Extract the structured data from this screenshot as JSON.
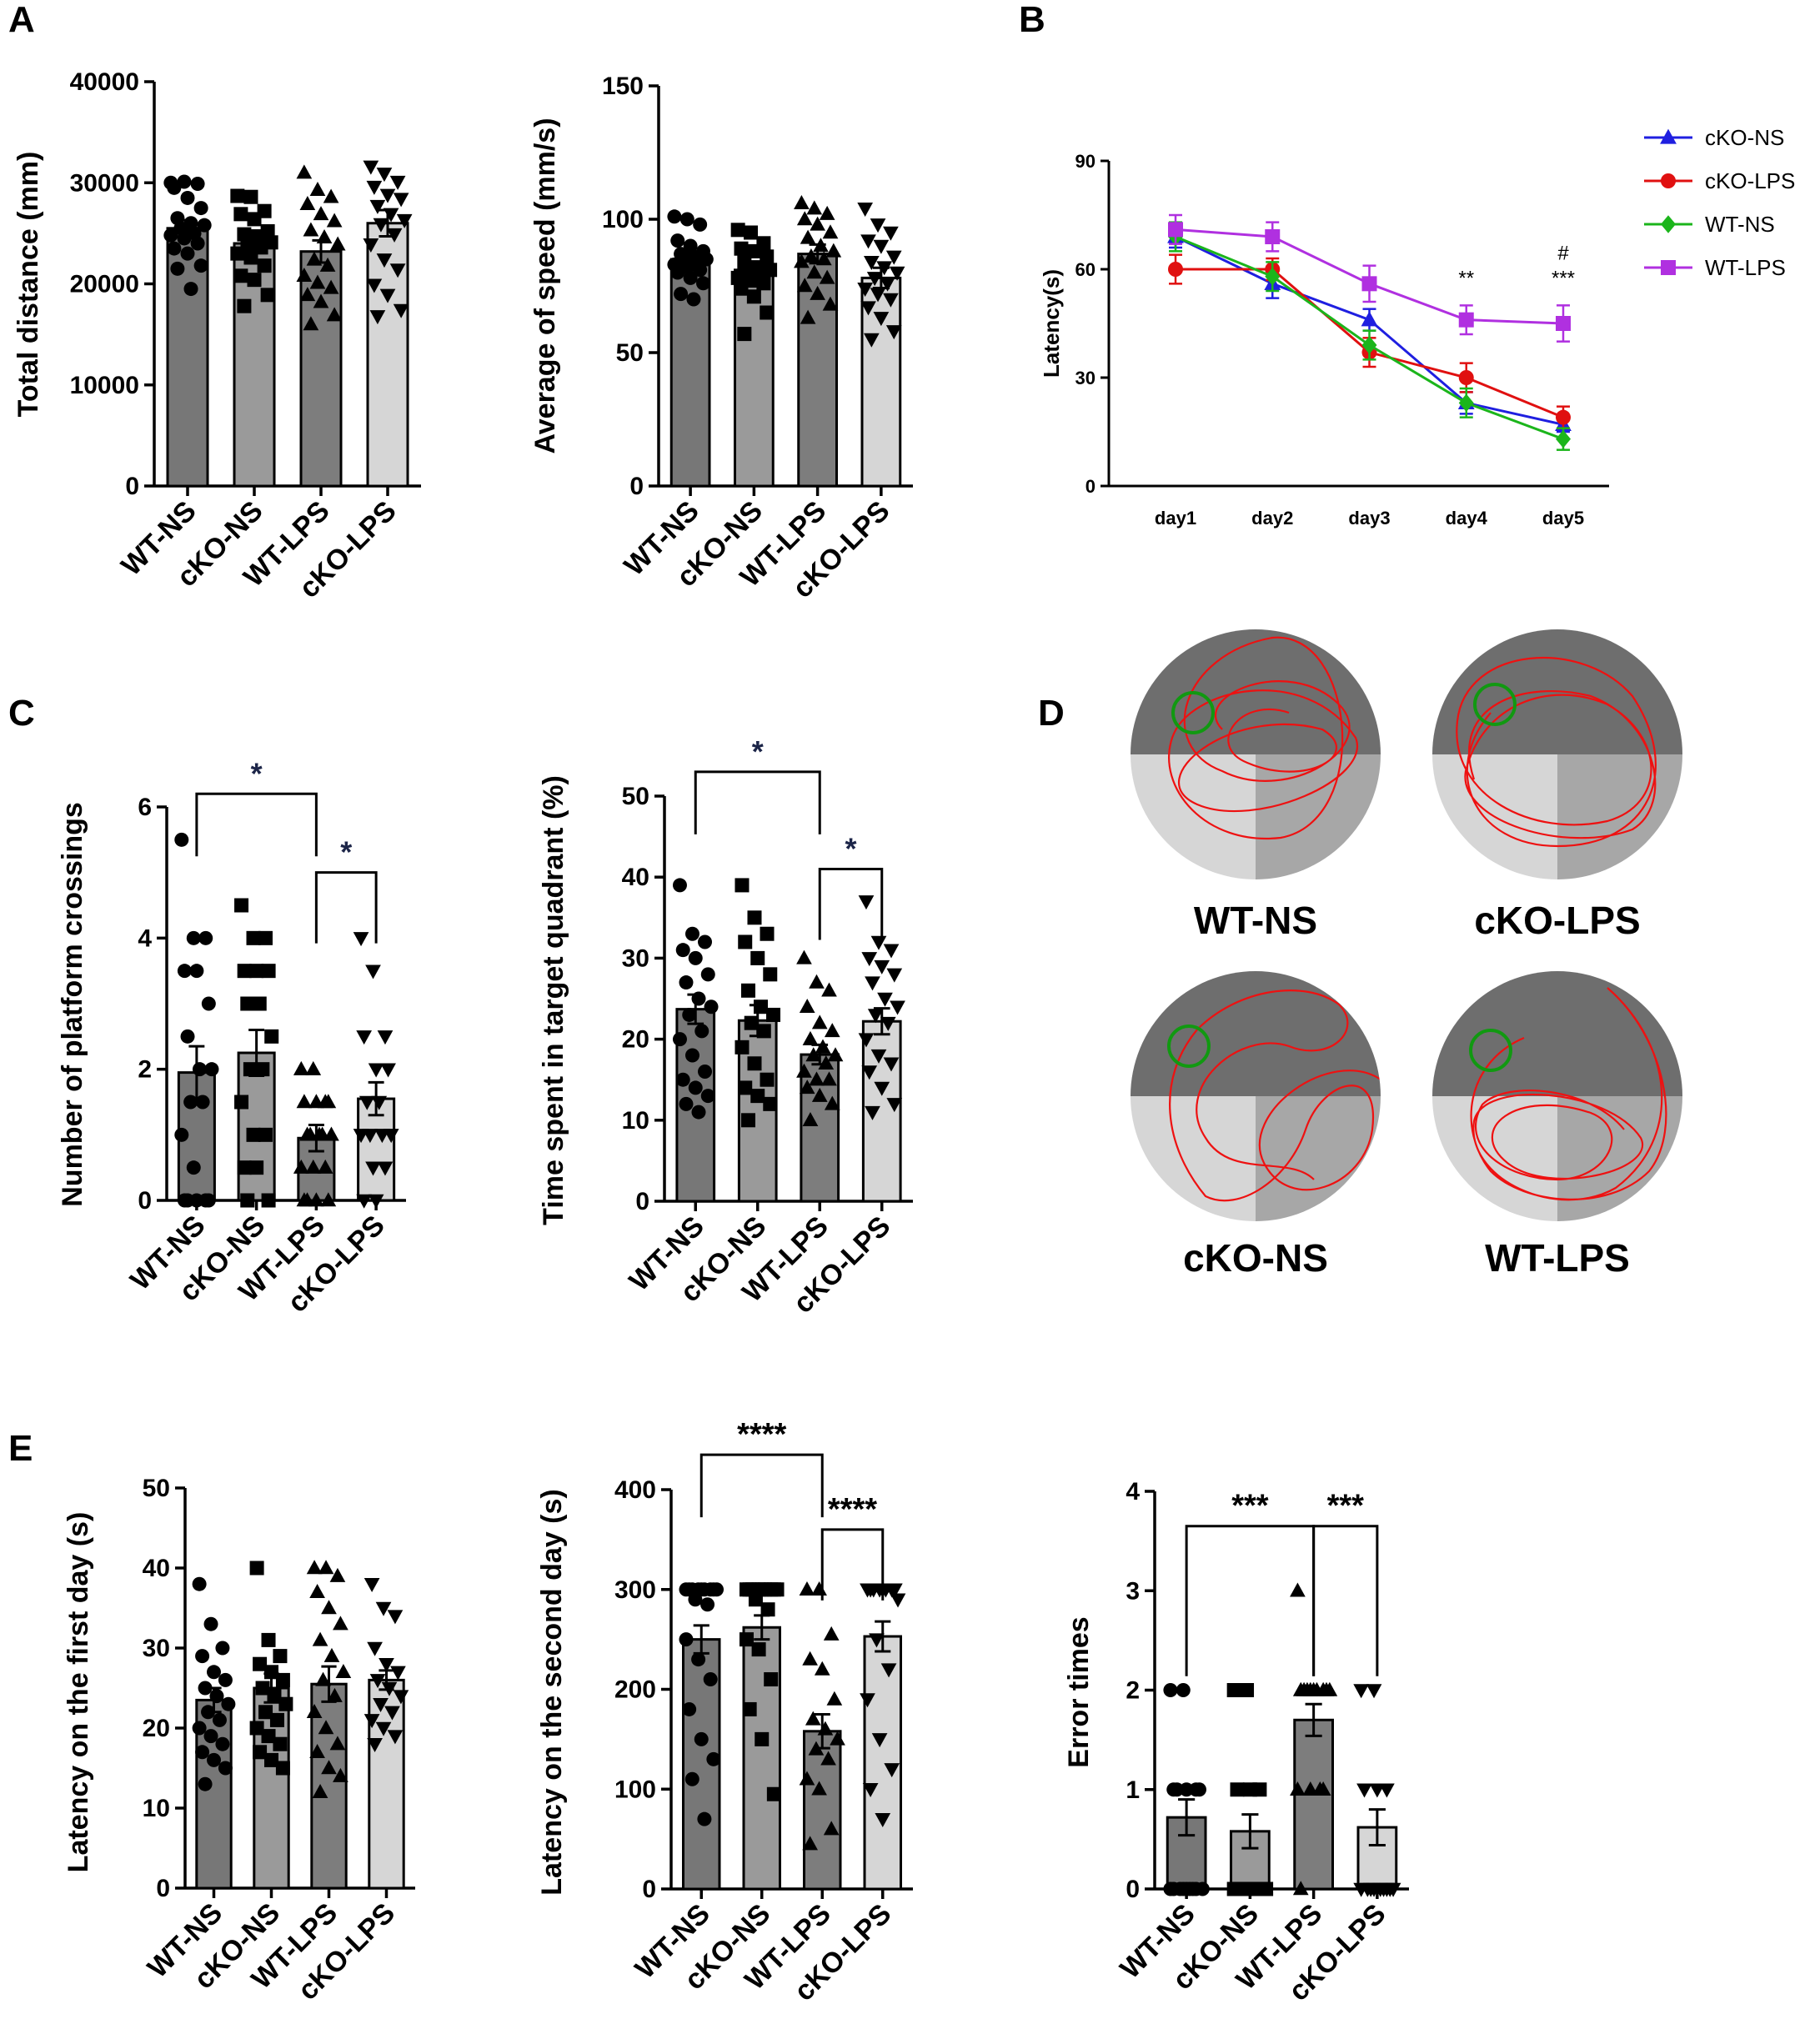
{
  "panels": {
    "A": "A",
    "B": "B",
    "C": "C",
    "D": "D",
    "E": "E"
  },
  "colors": {
    "bars": [
      "#777777",
      "#9a9a9a",
      "#7d7d7d",
      "#d6d6d6"
    ],
    "cKO-NS": "#1f1fe0",
    "cKO-LPS": "#e01010",
    "WT-NS": "#1bb51b",
    "WT-LPS": "#b030e0",
    "sig_dark": "#1c2548",
    "maze_dark": "#6e6e6e",
    "maze_mid": "#a7a7a7",
    "maze_light": "#d6d6d6",
    "path": "#ee1111",
    "platform": "#119911"
  },
  "chart_data": [
    {
      "id": "A1",
      "type": "bar",
      "ylabel": "Total distance (mm)",
      "ylim": [
        0,
        40000
      ],
      "yticks": [
        "0",
        "10000",
        "20000",
        "30000",
        "40000"
      ],
      "categories": [
        "WT-NS",
        "cKO-NS",
        "WT-LPS",
        "cKO-LPS"
      ],
      "values": [
        25500,
        24000,
        23200,
        26000
      ],
      "errors": [
        800,
        900,
        1100,
        1300
      ],
      "markers": [
        "circle",
        "square",
        "triangle",
        "tri-down"
      ],
      "points": [
        [
          30000,
          30100,
          29900,
          29500,
          28500,
          27500,
          26500,
          26000,
          25800,
          25500,
          25000,
          24800,
          24500,
          24000,
          23500,
          23000,
          21800,
          21500,
          19500
        ],
        [
          28700,
          28600,
          27200,
          26900,
          26400,
          25200,
          24900,
          24700,
          24100,
          23900,
          23600,
          23000,
          22600,
          21800,
          20800,
          20400,
          18900,
          17800
        ],
        [
          31000,
          29300,
          28600,
          27900,
          26900,
          26200,
          25300,
          24600,
          23900,
          22400,
          21800,
          20800,
          20100,
          19600,
          18900,
          18200,
          16900,
          16000
        ],
        [
          31600,
          30900,
          30100,
          29600,
          28800,
          28400,
          27700,
          26900,
          26300,
          25900,
          24900,
          23900,
          22400,
          21400,
          19900,
          18900,
          17400,
          16800
        ]
      ],
      "sig": []
    },
    {
      "id": "A2",
      "type": "bar",
      "ylabel": "Average of speed (mm/s)",
      "ylim": [
        0,
        150
      ],
      "yticks": [
        "0",
        "50",
        "100",
        "150"
      ],
      "categories": [
        "WT-NS",
        "cKO-NS",
        "WT-LPS",
        "cKO-LPS"
      ],
      "values": [
        85,
        81,
        87,
        78
      ],
      "errors": [
        2.5,
        3,
        3.5,
        3.8
      ],
      "markers": [
        "circle",
        "square",
        "triangle",
        "tri-down"
      ],
      "points": [
        [
          101,
          100,
          98,
          92,
          90,
          88,
          87,
          86,
          85,
          84,
          84,
          83,
          82,
          81,
          80,
          78,
          76,
          72,
          70
        ],
        [
          96,
          95,
          91,
          89,
          88,
          86,
          84,
          82,
          81,
          80,
          79,
          78,
          77,
          76,
          74,
          71,
          65,
          57
        ],
        [
          106,
          104,
          102,
          100,
          98,
          95,
          93,
          90,
          88,
          86,
          85,
          84,
          80,
          78,
          75,
          72,
          68,
          63
        ],
        [
          104,
          98,
          95,
          92,
          90,
          86,
          84,
          82,
          80,
          78,
          76,
          74,
          72,
          70,
          67,
          63,
          58,
          55
        ]
      ],
      "sig": []
    },
    {
      "id": "B",
      "type": "line",
      "xlabel": "",
      "ylabel": "Latency(s)",
      "ylim": [
        0,
        90
      ],
      "x": [
        "day1",
        "day2",
        "day3",
        "day4",
        "day5"
      ],
      "yticks": [
        "0",
        "30",
        "60",
        "90"
      ],
      "series": [
        {
          "name": "cKO-NS",
          "marker": "triangle",
          "values": [
            69,
            56,
            46,
            23,
            17
          ],
          "errors": [
            3,
            4,
            3,
            3,
            2
          ]
        },
        {
          "name": "cKO-LPS",
          "marker": "circle",
          "values": [
            60,
            60,
            37,
            30,
            19
          ],
          "errors": [
            4,
            3,
            4,
            4,
            3
          ]
        },
        {
          "name": "WT-NS",
          "marker": "diamond",
          "values": [
            69,
            58,
            39,
            23,
            13
          ],
          "errors": [
            4,
            4,
            4,
            4,
            3
          ]
        },
        {
          "name": "WT-LPS",
          "marker": "square",
          "values": [
            71,
            69,
            56,
            46,
            45
          ],
          "errors": [
            4,
            4,
            5,
            4,
            5
          ]
        }
      ],
      "annotations": [
        {
          "x": "day4",
          "text": "**"
        },
        {
          "x": "day5",
          "text": "***"
        },
        {
          "x": "day5",
          "text": "#"
        }
      ]
    },
    {
      "id": "C1",
      "type": "bar",
      "ylabel": "Number of platform crossings",
      "ylim": [
        0,
        6
      ],
      "yticks": [
        "0",
        "2",
        "4",
        "6"
      ],
      "categories": [
        "WT-NS",
        "cKO-NS",
        "WT-LPS",
        "cKO-LPS"
      ],
      "values": [
        1.95,
        2.25,
        0.95,
        1.55
      ],
      "errors": [
        0.4,
        0.35,
        0.2,
        0.25
      ],
      "markers": [
        "circle",
        "square",
        "triangle",
        "tri-down"
      ],
      "points": [
        [
          5.5,
          4,
          4,
          3.5,
          3.5,
          3,
          2.5,
          2,
          2,
          1.5,
          1.5,
          1,
          0.5,
          0,
          0,
          0,
          0,
          0
        ],
        [
          4.5,
          4,
          4,
          3.5,
          3.5,
          3.5,
          3,
          3,
          2.5,
          2,
          2,
          1.5,
          1,
          1,
          0.5,
          0.5,
          0,
          0
        ],
        [
          2,
          2,
          1.5,
          1.5,
          1.5,
          1.5,
          1,
          1,
          1,
          1,
          1,
          0.5,
          0.5,
          0.5,
          0,
          0,
          0,
          0
        ],
        [
          4,
          3.5,
          2.5,
          2.5,
          2,
          2,
          1.5,
          1.5,
          1,
          1,
          1,
          1,
          0.5,
          0.5,
          0,
          0
        ]
      ],
      "sig": [
        {
          "from": 0,
          "to": 2,
          "text": "*",
          "y": 6.2
        },
        {
          "from": 2,
          "to": 3,
          "text": "*",
          "y": 5.0
        }
      ]
    },
    {
      "id": "C2",
      "type": "bar",
      "ylabel": "Time spent in target quadrant (%)",
      "ylim": [
        0,
        50
      ],
      "yticks": [
        "0",
        "10",
        "20",
        "30",
        "40",
        "50"
      ],
      "categories": [
        "WT-NS",
        "cKO-NS",
        "WT-LPS",
        "cKO-LPS"
      ],
      "values": [
        23.7,
        22.3,
        18.1,
        22.2
      ],
      "errors": [
        1.8,
        1.9,
        1.2,
        1.6
      ],
      "markers": [
        "circle",
        "square",
        "triangle",
        "tri-down"
      ],
      "points": [
        [
          39,
          33,
          32,
          31,
          30,
          28,
          27,
          25,
          24,
          23,
          21,
          20,
          18,
          16,
          15,
          14,
          13,
          12,
          11
        ],
        [
          39,
          35,
          33,
          32,
          30,
          28,
          26,
          24,
          23,
          22,
          21,
          19,
          17,
          15,
          14,
          13,
          12,
          10
        ],
        [
          30,
          27,
          26,
          24,
          22,
          21,
          20,
          19,
          18,
          18,
          17,
          16,
          15,
          15,
          14,
          13,
          12,
          10
        ],
        [
          37,
          32,
          31,
          30,
          29,
          28,
          27,
          25,
          24,
          23,
          22,
          20,
          18,
          17,
          16,
          14,
          12,
          11
        ]
      ],
      "sig": [
        {
          "from": 0,
          "to": 2,
          "text": "*",
          "y": 53
        },
        {
          "from": 2,
          "to": 3,
          "text": "*",
          "y": 41
        }
      ]
    },
    {
      "id": "E1",
      "type": "bar",
      "ylabel": "Latency on the first day (s)",
      "ylim": [
        0,
        50
      ],
      "yticks": [
        "0",
        "10",
        "20",
        "30",
        "40",
        "50"
      ],
      "categories": [
        "WT-NS",
        "cKO-NS",
        "WT-LPS",
        "cKO-LPS"
      ],
      "values": [
        23.5,
        25,
        25.5,
        26
      ],
      "errors": [
        1.5,
        1.8,
        2.2,
        1.2
      ],
      "markers": [
        "circle",
        "square",
        "triangle",
        "tri-down"
      ],
      "points": [
        [
          38,
          33,
          30,
          29,
          27,
          26,
          25,
          24,
          23,
          22,
          21,
          20,
          19,
          18,
          17,
          16,
          15,
          13
        ],
        [
          40,
          31,
          29,
          28,
          27,
          26,
          25,
          24,
          23,
          22,
          21,
          20,
          19,
          18,
          17,
          16,
          15
        ],
        [
          40,
          40,
          39,
          37,
          35,
          33,
          31,
          29,
          27,
          26,
          24,
          22,
          20,
          18,
          17,
          15,
          14,
          12
        ],
        [
          38,
          35,
          34,
          30,
          28,
          27,
          26,
          25,
          24,
          23,
          22,
          21,
          20,
          19,
          18
        ]
      ],
      "sig": []
    },
    {
      "id": "E2",
      "type": "bar",
      "ylabel": "Latency on the second day (s)",
      "ylim": [
        0,
        400
      ],
      "yticks": [
        "0",
        "100",
        "200",
        "300",
        "400"
      ],
      "categories": [
        "WT-NS",
        "cKO-NS",
        "WT-LPS",
        "cKO-LPS"
      ],
      "values": [
        250,
        262,
        158,
        253
      ],
      "errors": [
        14,
        12,
        17,
        15
      ],
      "markers": [
        "circle",
        "square",
        "triangle",
        "tri-down"
      ],
      "points": [
        [
          300,
          300,
          300,
          300,
          300,
          300,
          300,
          300,
          300,
          290,
          285,
          250,
          230,
          210,
          180,
          150,
          130,
          110,
          70
        ],
        [
          300,
          300,
          300,
          300,
          300,
          300,
          300,
          300,
          300,
          290,
          280,
          250,
          240,
          210,
          180,
          150,
          95
        ],
        [
          300,
          300,
          255,
          230,
          220,
          190,
          170,
          160,
          150,
          140,
          130,
          110,
          100,
          60,
          45
        ],
        [
          300,
          300,
          300,
          300,
          300,
          300,
          300,
          300,
          290,
          250,
          220,
          190,
          150,
          120,
          100,
          70
        ]
      ],
      "sig": [
        {
          "from": 0,
          "to": 2,
          "text": "****",
          "y": 435
        },
        {
          "from": 2,
          "to": 3,
          "text": "****",
          "y": 360
        }
      ]
    },
    {
      "id": "E3",
      "type": "bar",
      "ylabel": "Error times",
      "ylim": [
        0,
        4
      ],
      "yticks": [
        "0",
        "1",
        "2",
        "3",
        "4"
      ],
      "categories": [
        "WT-NS",
        "cKO-NS",
        "WT-LPS",
        "cKO-LPS"
      ],
      "values": [
        0.72,
        0.58,
        1.7,
        0.62
      ],
      "errors": [
        0.18,
        0.17,
        0.16,
        0.18
      ],
      "markers": [
        "circle",
        "square",
        "triangle",
        "tri-down"
      ],
      "points": [
        [
          2,
          2,
          1,
          1,
          1,
          1,
          1,
          0,
          0,
          0,
          0,
          0,
          0,
          0,
          0,
          0
        ],
        [
          2,
          2,
          1,
          1,
          1,
          0,
          0,
          0,
          0,
          0,
          0,
          0,
          0,
          0
        ],
        [
          3,
          2,
          2,
          2,
          2,
          2,
          2,
          2,
          2,
          2,
          1,
          1,
          1,
          1,
          0
        ],
        [
          2,
          2,
          1,
          1,
          1,
          0,
          0,
          0,
          0,
          0,
          0,
          0,
          0,
          0
        ]
      ],
      "sig": [
        {
          "from": 0,
          "to": 2,
          "text": "***",
          "y": 3.65
        },
        {
          "from": 2,
          "to": 3,
          "text": "***",
          "y": 3.65
        }
      ]
    }
  ],
  "maze": [
    {
      "label": "WT-NS"
    },
    {
      "label": "cKO-LPS"
    },
    {
      "label": "cKO-NS"
    },
    {
      "label": "WT-LPS"
    }
  ]
}
